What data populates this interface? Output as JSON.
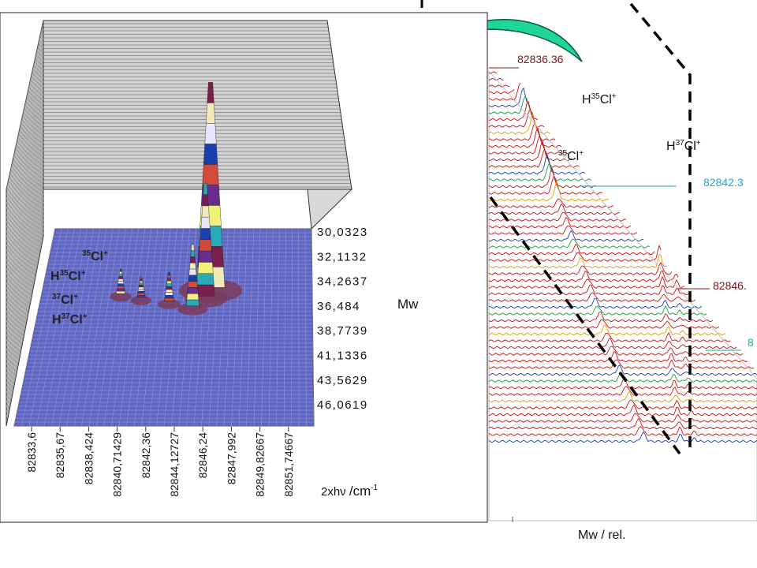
{
  "chart_data": [
    {
      "type": "surface",
      "xlabel": "2xhν /cm-1",
      "ylabel": "Mw",
      "x_ticks": [
        "82833,6",
        "82835,67",
        "82838,424",
        "82840,71429",
        "82842,36",
        "82844,12727",
        "82846,24",
        "82847,992",
        "82849,82667",
        "82851,74667"
      ],
      "y_ticks": [
        "30,0323",
        "32,1132",
        "34,2637",
        "36,484",
        "38,7739",
        "41,1336",
        "43,5629",
        "46,0619"
      ],
      "peak_labels": [
        "35Cl+",
        "H35Cl+",
        "37Cl+",
        "H37Cl+"
      ],
      "peaks": [
        {
          "x": 82844.9,
          "y": 34.8,
          "height": 1.0
        },
        {
          "x": 82844.6,
          "y": 35.5,
          "height": 0.55
        },
        {
          "x": 82843.8,
          "y": 36.3,
          "height": 0.3
        },
        {
          "x": 82838.9,
          "y": 35.3,
          "height": 0.12
        },
        {
          "x": 82840.3,
          "y": 35.6,
          "height": 0.1
        },
        {
          "x": 82842.2,
          "y": 35.9,
          "height": 0.14
        }
      ]
    },
    {
      "type": "line",
      "xlabel": "Mw / rel.",
      "line_annotations": [
        "82836.36",
        "82842.3",
        "82846.",
        "8"
      ],
      "peak_labels": [
        "H35Cl+",
        "H37Cl+",
        "35Cl+"
      ]
    }
  ],
  "colors": {
    "floor": "#5f67c2",
    "back_wall": "#c8c8c8",
    "arrow": "#1fd59a",
    "spectra": "#cc1111",
    "annot_dark": "#7a1020",
    "annot_cyan": "#1aa7dc",
    "annot_green": "#22b06c"
  }
}
